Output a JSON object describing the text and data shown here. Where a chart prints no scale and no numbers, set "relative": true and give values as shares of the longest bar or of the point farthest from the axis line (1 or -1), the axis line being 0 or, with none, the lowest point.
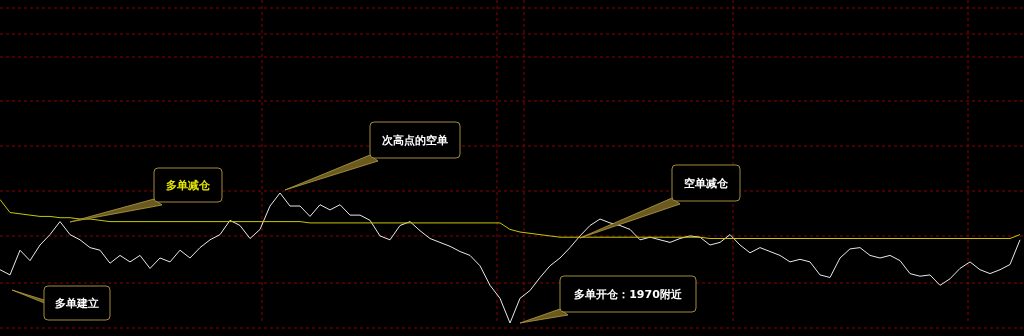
{
  "chart_data": {
    "type": "line",
    "relative": true,
    "grid": true,
    "legend": false,
    "marker": "none",
    "categories": [
      null,
      null,
      null,
      null,
      null,
      null,
      null,
      null,
      null,
      null,
      null,
      null,
      null,
      null,
      null,
      null,
      null,
      null,
      null,
      null,
      null,
      null,
      null,
      null,
      null,
      null,
      null,
      null,
      null,
      null,
      null,
      null,
      null,
      null,
      null,
      null,
      null,
      null,
      null,
      null,
      null,
      null,
      null,
      null,
      null,
      null,
      null,
      null,
      null,
      null,
      null,
      null,
      null,
      null,
      null,
      null,
      null,
      null,
      null,
      null,
      null,
      null,
      null,
      null,
      null,
      null,
      null,
      null,
      null,
      null,
      null,
      null,
      null,
      null,
      null,
      null,
      null,
      null,
      null,
      null,
      null,
      null,
      null,
      null,
      null,
      null,
      null,
      null,
      null,
      null,
      null,
      null,
      null,
      null,
      null,
      null,
      null,
      null,
      null,
      null,
      null,
      null,
      null
    ],
    "series": [
      {
        "color": "#e8e8e8",
        "values": [
          0.41,
          0.37,
          0.56,
          0.48,
          0.6,
          0.68,
          0.78,
          0.68,
          0.64,
          0.58,
          0.56,
          0.46,
          0.52,
          0.47,
          0.52,
          0.42,
          0.5,
          0.47,
          0.56,
          0.5,
          0.58,
          0.64,
          0.68,
          0.79,
          0.75,
          0.65,
          0.72,
          0.9,
          1.0,
          0.9,
          0.9,
          0.82,
          0.91,
          0.87,
          0.91,
          0.83,
          0.83,
          0.79,
          0.67,
          0.64,
          0.75,
          0.78,
          0.71,
          0.65,
          0.62,
          0.59,
          0.55,
          0.52,
          0.44,
          0.29,
          0.19,
          0,
          0.19,
          0.25,
          0.35,
          0.44,
          0.5,
          0.58,
          0.67,
          0.75,
          0.8,
          0.77,
          0.75,
          0.72,
          0.64,
          0.66,
          0.64,
          0.62,
          0.65,
          0.67,
          0.66,
          0.6,
          0.62,
          0.68,
          0.6,
          0.54,
          0.58,
          0.55,
          0.52,
          0.47,
          0.49,
          0.47,
          0.37,
          0.35,
          0.5,
          0.57,
          0.58,
          0.52,
          0.5,
          0.52,
          0.48,
          0.38,
          0.36,
          0.37,
          0.29,
          0.34,
          0.42,
          0.47,
          0.41,
          0.38,
          0.41,
          0.45,
          0.64
        ]
      },
      {
        "color": "#c8c800",
        "values": [
          0.95,
          0.85,
          0.84,
          0.83,
          0.82,
          0.82,
          0.81,
          0.81,
          0.8,
          0.8,
          0.79,
          0.78,
          0.78,
          0.78,
          0.78,
          0.78,
          0.78,
          0.78,
          0.78,
          0.78,
          0.78,
          0.78,
          0.78,
          0.78,
          0.78,
          0.78,
          0.78,
          0.78,
          0.78,
          0.78,
          0.78,
          0.77,
          0.77,
          0.77,
          0.77,
          0.77,
          0.77,
          0.77,
          0.77,
          0.77,
          0.77,
          0.77,
          0.77,
          0.77,
          0.77,
          0.77,
          0.77,
          0.77,
          0.77,
          0.77,
          0.77,
          0.72,
          0.7,
          0.69,
          0.68,
          0.67,
          0.66,
          0.66,
          0.66,
          0.66,
          0.66,
          0.66,
          0.66,
          0.66,
          0.66,
          0.66,
          0.66,
          0.66,
          0.66,
          0.66,
          0.66,
          0.65,
          0.65,
          0.65,
          0.65,
          0.65,
          0.65,
          0.65,
          0.65,
          0.65,
          0.65,
          0.65,
          0.65,
          0.65,
          0.65,
          0.65,
          0.65,
          0.65,
          0.65,
          0.65,
          0.65,
          0.65,
          0.65,
          0.65,
          0.65,
          0.65,
          0.65,
          0.65,
          0.65,
          0.65,
          0.65,
          0.65,
          0.68
        ]
      }
    ],
    "annotations": [
      "多单建立",
      "多单减仓",
      "次高点的空单",
      "空单减仓",
      "多单开仓：1970附近"
    ]
  }
}
